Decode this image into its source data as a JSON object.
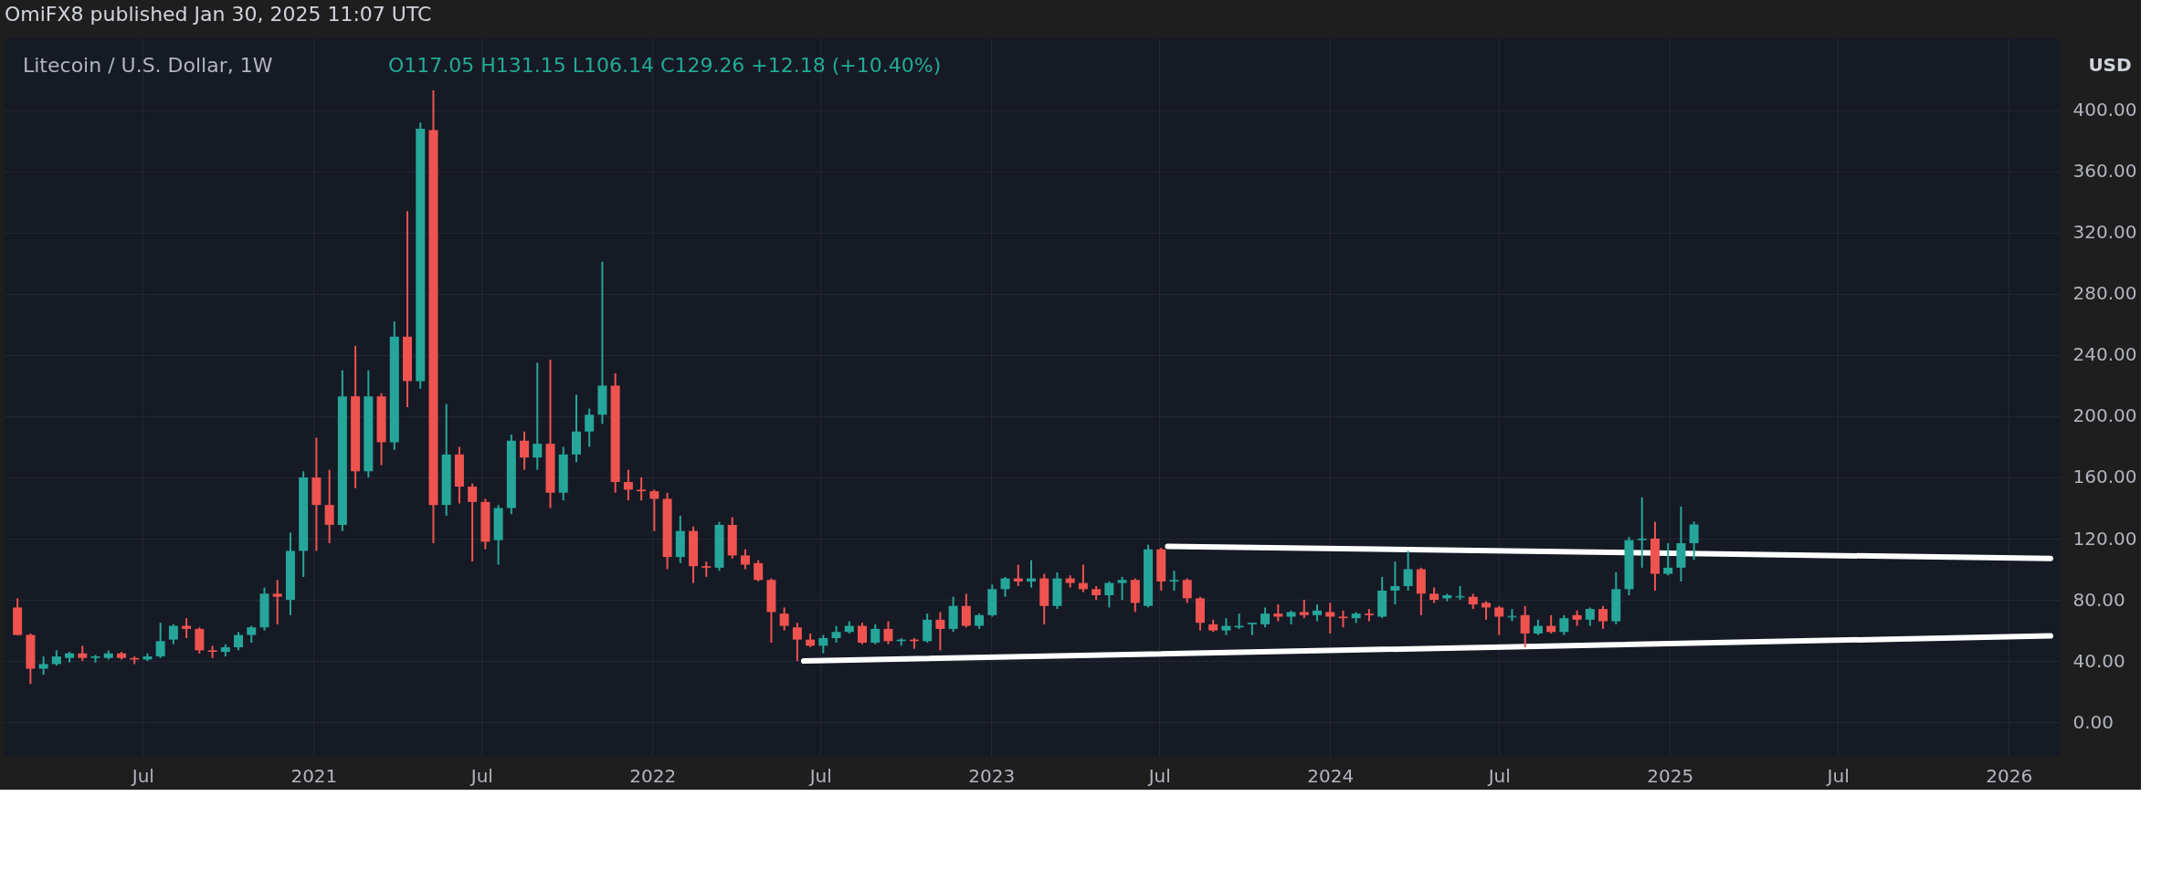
{
  "chart_data": {
    "type": "candlestick",
    "title": "Litecoin / U.S. Dollar, 1W",
    "annotations": [
      "OmiFX8 published Jan 30, 2025 11:07 UTC",
      "O117.05 H131.15 L106.14 C129.26 +12.18 (+10.40%)",
      "USD"
    ],
    "colors": [
      "#ef5350",
      "#ef5350",
      "#26a69a",
      "#26a69a",
      "#26a69a",
      "#ef5350",
      "#26a69a",
      "#26a69a",
      "#ef5350",
      "#ef5350",
      "#26a69a",
      "#26a69a",
      "#26a69a",
      "#ef5350",
      "#ef5350",
      "#ef5350",
      "#26a69a",
      "#26a69a",
      "#26a69a",
      "#26a69a",
      "#ef5350",
      "#26a69a",
      "#26a69a",
      "#ef5350",
      "#ef5350",
      "#26a69a",
      "#ef5350",
      "#26a69a",
      "#ef5350",
      "#26a69a",
      "#ef5350",
      "#26a69a",
      "#ef5350",
      "#26a69a",
      "#ef5350",
      "#ef5350",
      "#ef5350",
      "#26a69a",
      "#26a69a",
      "#ef5350",
      "#26a69a",
      "#ef5350",
      "#26a69a",
      "#26a69a",
      "#26a69a",
      "#26a69a",
      "#ef5350",
      "#ef5350",
      "#ef5350",
      "#ef5350",
      "#ef5350",
      "#26a69a",
      "#ef5350",
      "#ef5350",
      "#26a69a",
      "#ef5350",
      "#ef5350",
      "#ef5350",
      "#ef5350",
      "#ef5350",
      "#ef5350",
      "#ef5350",
      "#26a69a",
      "#26a69a",
      "#26a69a",
      "#ef5350",
      "#26a69a",
      "#ef5350",
      "#26a69a",
      "#ef5350",
      "#26a69a",
      "#ef5350",
      "#26a69a",
      "#ef5350",
      "#26a69a",
      "#26a69a",
      "#26a69a",
      "#ef5350",
      "#26a69a",
      "#ef5350",
      "#26a69a",
      "#ef5350",
      "#ef5350",
      "#ef5350",
      "#26a69a",
      "#26a69a",
      "#ef5350",
      "#26a69a",
      "#ef5350",
      "#26a69a",
      "#ef5350",
      "#ef5350",
      "#ef5350",
      "#26a69a",
      "#26a69a",
      "#26a69a",
      "#26a69a",
      "#ef5350",
      "#26a69a",
      "#ef5350",
      "#26a69a",
      "#ef5350",
      "#ef5350",
      "#26a69a",
      "#ef5350",
      "#26a69a",
      "#26a69a",
      "#26a69a",
      "#ef5350",
      "#ef5350",
      "#26a69a",
      "#26a69a",
      "#ef5350",
      "#ef5350",
      "#ef5350",
      "#26a69a",
      "#ef5350",
      "#26a69a",
      "#ef5350",
      "#26a69a",
      "#ef5350",
      "#26a69a",
      "#ef5350",
      "#26a69a",
      "#26a69a",
      "#26a69a",
      "#ef5350",
      "#26a69a",
      "#26a69a",
      "#26a69a"
    ],
    "x": [
      "2020-02-17",
      "2020-03-02",
      "2020-03-16",
      "2020-03-30",
      "2020-04-13",
      "2020-04-27",
      "2020-05-11",
      "2020-05-25",
      "2020-06-08",
      "2020-06-22",
      "2020-07-06",
      "2020-07-20",
      "2020-08-03",
      "2020-08-17",
      "2020-08-31",
      "2020-09-14",
      "2020-09-28",
      "2020-10-12",
      "2020-10-26",
      "2020-11-09",
      "2020-11-23",
      "2020-12-07",
      "2020-12-21",
      "2021-01-04",
      "2021-01-18",
      "2021-02-01",
      "2021-02-15",
      "2021-03-01",
      "2021-03-15",
      "2021-03-29",
      "2021-04-12",
      "2021-04-26",
      "2021-05-10",
      "2021-05-24",
      "2021-06-07",
      "2021-06-21",
      "2021-07-05",
      "2021-07-19",
      "2021-08-02",
      "2021-08-16",
      "2021-08-30",
      "2021-09-13",
      "2021-09-27",
      "2021-10-11",
      "2021-10-25",
      "2021-11-08",
      "2021-11-22",
      "2021-12-06",
      "2021-12-20",
      "2022-01-03",
      "2022-01-17",
      "2022-01-31",
      "2022-02-14",
      "2022-02-28",
      "2022-03-14",
      "2022-03-28",
      "2022-04-11",
      "2022-04-25",
      "2022-05-09",
      "2022-05-23",
      "2022-06-06",
      "2022-06-20",
      "2022-07-04",
      "2022-07-18",
      "2022-08-01",
      "2022-08-15",
      "2022-08-29",
      "2022-09-12",
      "2022-09-26",
      "2022-10-10",
      "2022-10-24",
      "2022-11-07",
      "2022-11-21",
      "2022-12-05",
      "2022-12-19",
      "2023-01-02",
      "2023-01-16",
      "2023-01-30",
      "2023-02-13",
      "2023-02-27",
      "2023-03-13",
      "2023-03-27",
      "2023-04-10",
      "2023-04-24",
      "2023-05-08",
      "2023-05-22",
      "2023-06-05",
      "2023-06-19",
      "2023-07-03",
      "2023-07-17",
      "2023-07-31",
      "2023-08-14",
      "2023-08-28",
      "2023-09-11",
      "2023-09-25",
      "2023-10-09",
      "2023-10-23",
      "2023-11-06",
      "2023-11-20",
      "2023-12-04",
      "2023-12-18",
      "2024-01-01",
      "2024-01-15",
      "2024-01-29",
      "2024-02-12",
      "2024-02-26",
      "2024-03-11",
      "2024-03-25",
      "2024-04-08",
      "2024-04-22",
      "2024-05-06",
      "2024-05-20",
      "2024-06-03",
      "2024-06-17",
      "2024-07-01",
      "2024-07-15",
      "2024-07-29",
      "2024-08-12",
      "2024-08-26",
      "2024-09-09",
      "2024-09-23",
      "2024-10-07",
      "2024-10-21",
      "2024-11-04",
      "2024-11-18",
      "2024-12-02",
      "2024-12-16",
      "2024-12-30",
      "2025-01-13",
      "2025-01-27"
    ],
    "ohlc": [
      [
        75,
        81,
        57,
        57
      ],
      [
        57,
        58,
        25,
        35
      ],
      [
        35,
        43,
        31,
        38
      ],
      [
        38,
        47,
        37,
        43
      ],
      [
        42,
        46,
        39,
        45
      ],
      [
        45,
        50,
        40,
        42
      ],
      [
        42,
        44,
        39,
        43
      ],
      [
        42,
        47,
        41,
        45
      ],
      [
        45,
        46,
        41,
        42
      ],
      [
        42,
        43,
        38,
        41
      ],
      [
        41,
        45,
        40,
        43
      ],
      [
        43,
        65,
        42,
        53
      ],
      [
        54,
        64,
        51,
        63
      ],
      [
        63,
        68,
        55,
        61
      ],
      [
        61,
        62,
        45,
        47
      ],
      [
        47,
        50,
        42,
        46
      ],
      [
        46,
        51,
        43,
        49
      ],
      [
        49,
        59,
        47,
        57
      ],
      [
        57,
        63,
        52,
        62
      ],
      [
        62,
        88,
        60,
        84
      ],
      [
        84,
        93,
        64,
        82
      ],
      [
        80,
        124,
        70,
        112
      ],
      [
        112,
        164,
        95,
        160
      ],
      [
        160,
        186,
        112,
        142
      ],
      [
        142,
        165,
        117,
        129
      ],
      [
        129,
        230,
        125,
        213
      ],
      [
        213,
        246,
        153,
        164
      ],
      [
        164,
        230,
        160,
        213
      ],
      [
        213,
        215,
        168,
        183
      ],
      [
        183,
        262,
        178,
        252
      ],
      [
        252,
        334,
        206,
        223
      ],
      [
        223,
        392,
        218,
        388
      ],
      [
        387,
        413,
        117,
        142
      ],
      [
        142,
        208,
        135,
        175
      ],
      [
        175,
        180,
        143,
        154
      ],
      [
        154,
        156,
        105,
        144
      ],
      [
        144,
        146,
        113,
        118
      ],
      [
        119,
        142,
        103,
        140
      ],
      [
        140,
        188,
        136,
        184
      ],
      [
        184,
        190,
        165,
        173
      ],
      [
        173,
        235,
        165,
        182
      ],
      [
        182,
        237,
        140,
        150
      ],
      [
        150,
        180,
        145,
        175
      ],
      [
        175,
        214,
        170,
        190
      ],
      [
        190,
        205,
        180,
        201
      ],
      [
        201,
        301,
        195,
        220
      ],
      [
        220,
        228,
        150,
        157
      ],
      [
        157,
        165,
        145,
        152
      ],
      [
        152,
        160,
        145,
        151
      ],
      [
        151,
        152,
        125,
        146
      ],
      [
        146,
        150,
        100,
        108
      ],
      [
        108,
        135,
        104,
        125
      ],
      [
        125,
        128,
        91,
        102
      ],
      [
        102,
        105,
        95,
        101
      ],
      [
        101,
        131,
        99,
        129
      ],
      [
        129,
        134,
        107,
        109
      ],
      [
        109,
        113,
        100,
        103
      ],
      [
        104,
        106,
        92,
        93
      ],
      [
        93,
        94,
        52,
        72
      ],
      [
        71,
        75,
        60,
        63
      ],
      [
        62,
        65,
        40,
        54
      ],
      [
        54,
        58,
        49,
        50
      ],
      [
        50,
        57,
        45,
        55
      ],
      [
        55,
        63,
        52,
        59
      ],
      [
        59,
        66,
        58,
        63
      ],
      [
        63,
        65,
        51,
        52
      ],
      [
        52,
        64,
        51,
        61
      ],
      [
        61,
        66,
        51,
        53
      ],
      [
        53,
        55,
        50,
        54
      ],
      [
        54,
        55,
        48,
        53
      ],
      [
        53,
        71,
        52,
        67
      ],
      [
        67,
        72,
        47,
        61
      ],
      [
        61,
        82,
        59,
        76
      ],
      [
        76,
        84,
        62,
        63
      ],
      [
        63,
        71,
        61,
        70
      ],
      [
        70,
        90,
        69,
        87
      ],
      [
        87,
        95,
        82,
        94
      ],
      [
        94,
        103,
        89,
        92
      ],
      [
        92,
        106,
        88,
        94
      ],
      [
        94,
        97,
        64,
        76
      ],
      [
        76,
        98,
        74,
        94
      ],
      [
        94,
        96,
        88,
        91
      ],
      [
        91,
        103,
        85,
        87
      ],
      [
        87,
        89,
        80,
        83
      ],
      [
        83,
        92,
        75,
        91
      ],
      [
        91,
        95,
        80,
        93
      ],
      [
        93,
        94,
        72,
        78
      ],
      [
        76,
        116,
        75,
        113
      ],
      [
        113,
        114,
        86,
        92
      ],
      [
        92,
        99,
        86,
        93
      ],
      [
        93,
        94,
        78,
        81
      ],
      [
        81,
        82,
        60,
        65
      ],
      [
        64,
        67,
        59,
        60
      ],
      [
        60,
        68,
        57,
        63
      ],
      [
        62,
        71,
        61,
        63
      ],
      [
        64,
        65,
        57,
        65
      ],
      [
        64,
        75,
        62,
        71
      ],
      [
        71,
        77,
        66,
        69
      ],
      [
        69,
        73,
        64,
        72
      ],
      [
        72,
        80,
        68,
        70
      ],
      [
        70,
        77,
        66,
        73
      ],
      [
        72,
        78,
        58,
        69
      ],
      [
        69,
        73,
        62,
        68
      ],
      [
        68,
        72,
        65,
        71
      ],
      [
        71,
        74,
        66,
        70
      ],
      [
        69,
        95,
        68,
        86
      ],
      [
        86,
        105,
        77,
        89
      ],
      [
        89,
        112,
        86,
        100
      ],
      [
        100,
        101,
        70,
        84
      ],
      [
        84,
        88,
        78,
        80
      ],
      [
        81,
        84,
        79,
        83
      ],
      [
        82,
        89,
        80,
        82
      ],
      [
        82,
        84,
        74,
        77
      ],
      [
        78,
        79,
        67,
        75
      ],
      [
        75,
        76,
        57,
        69
      ],
      [
        69,
        74,
        66,
        69
      ],
      [
        70,
        76,
        49,
        58
      ],
      [
        58,
        67,
        57,
        63
      ],
      [
        63,
        70,
        58,
        59
      ],
      [
        59,
        70,
        57,
        68
      ],
      [
        70,
        73,
        63,
        67
      ],
      [
        67,
        75,
        63,
        74
      ],
      [
        74,
        76,
        61,
        66
      ],
      [
        66,
        98,
        64,
        87
      ],
      [
        87,
        121,
        83,
        119
      ],
      [
        119,
        147,
        101,
        120
      ],
      [
        120,
        131,
        86,
        97
      ],
      [
        97,
        117,
        96,
        101
      ],
      [
        101,
        141,
        92,
        117
      ],
      [
        117.05,
        131.15,
        106.14,
        129.26
      ]
    ],
    "series": [
      {
        "type": "line",
        "color": "#ffffff",
        "x": [
          "2022-06-13",
          "2026-02-15"
        ],
        "values": [
          40,
          56.4
        ]
      },
      {
        "type": "line",
        "color": "#ffffff",
        "x": [
          "2023-07-10",
          "2026-02-15"
        ],
        "values": [
          115,
          107
        ]
      }
    ],
    "xlim": [
      "2020-02-08",
      "2026-02-20"
    ],
    "xticks": [
      {
        "value": "2020-07-01",
        "label": "Jul"
      },
      {
        "value": "2021-01-01",
        "label": "2021"
      },
      {
        "value": "2021-07-01",
        "label": "Jul"
      },
      {
        "value": "2022-01-01",
        "label": "2022"
      },
      {
        "value": "2022-07-01",
        "label": "Jul"
      },
      {
        "value": "2023-01-01",
        "label": "2023"
      },
      {
        "value": "2023-07-01",
        "label": "Jul"
      },
      {
        "value": "2024-01-01",
        "label": "2024"
      },
      {
        "value": "2024-07-01",
        "label": "Jul"
      },
      {
        "value": "2025-01-01",
        "label": "2025"
      },
      {
        "value": "2025-07-01",
        "label": "Jul"
      },
      {
        "value": "2026-01-01",
        "label": "2026"
      }
    ],
    "ylim": [
      -22,
      447
    ],
    "yticks": [
      {
        "value": 0,
        "label": "0.00"
      },
      {
        "value": 40,
        "label": "40.00"
      },
      {
        "value": 80,
        "label": "80.00"
      },
      {
        "value": 120,
        "label": "120.00"
      },
      {
        "value": 160,
        "label": "160.00"
      },
      {
        "value": 200,
        "label": "200.00"
      },
      {
        "value": 240,
        "label": "240.00"
      },
      {
        "value": 280,
        "label": "280.00"
      },
      {
        "value": 320,
        "label": "320.00"
      },
      {
        "value": 360,
        "label": "360.00"
      },
      {
        "value": 400,
        "label": "400.00"
      }
    ],
    "grid": true
  }
}
